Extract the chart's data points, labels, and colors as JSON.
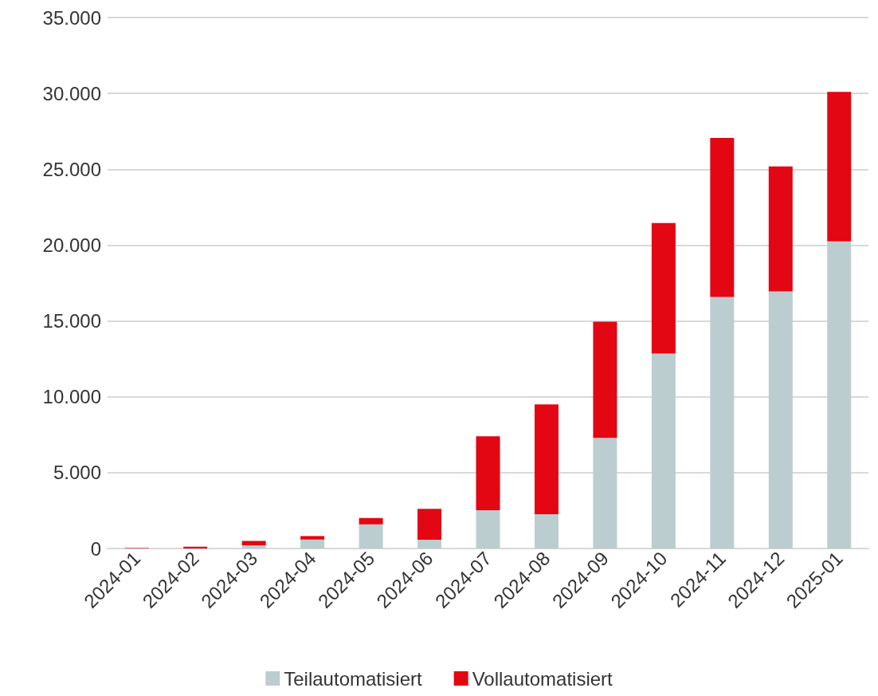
{
  "chart_data": {
    "type": "bar",
    "stacked": true,
    "categories": [
      "2024-01",
      "2024-02",
      "2024-03",
      "2024-04",
      "2024-05",
      "2024-06",
      "2024-07",
      "2024-08",
      "2024-09",
      "2024-10",
      "2024-11",
      "2024-12",
      "2025-01"
    ],
    "series": [
      {
        "name": "Teilautomatisiert",
        "color": "#bccdd0",
        "values": [
          20,
          null,
          210,
          590,
          1590,
          580,
          2520,
          2260,
          7290,
          12850,
          16580,
          16950,
          20250
        ]
      },
      {
        "name": "Vollautomatisiert",
        "color": "#e30613",
        "values": [
          30,
          120,
          290,
          230,
          420,
          2040,
          4880,
          7240,
          7660,
          8610,
          10490,
          8230,
          9850
        ]
      }
    ],
    "ylim": [
      0,
      35000
    ],
    "yticks": [
      {
        "value": 0,
        "label": "0"
      },
      {
        "value": 5000,
        "label": "5.000"
      },
      {
        "value": 10000,
        "label": "10.000"
      },
      {
        "value": 15000,
        "label": "15.000"
      },
      {
        "value": 20000,
        "label": "20.000"
      },
      {
        "value": 25000,
        "label": "25.000"
      },
      {
        "value": 30000,
        "label": "30.000"
      },
      {
        "value": 35000,
        "label": "35.000"
      }
    ],
    "grid": "y",
    "legend": "bottom"
  }
}
